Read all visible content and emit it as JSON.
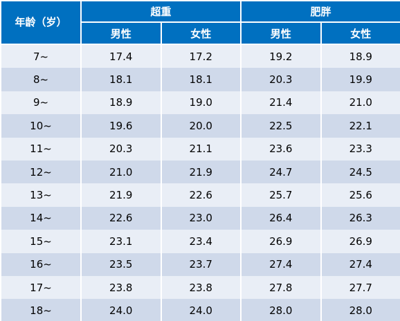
{
  "table": {
    "headers": {
      "age": "年龄（岁）",
      "groups": [
        {
          "label": "超重",
          "sub": [
            "男性",
            "女性"
          ]
        },
        {
          "label": "肥胖",
          "sub": [
            "男性",
            "女性"
          ]
        }
      ]
    },
    "rows": [
      {
        "age": "7~",
        "values": [
          "17.4",
          "17.2",
          "19.2",
          "18.9"
        ]
      },
      {
        "age": "8~",
        "values": [
          "18.1",
          "18.1",
          "20.3",
          "19.9"
        ]
      },
      {
        "age": "9~",
        "values": [
          "18.9",
          "19.0",
          "21.4",
          "21.0"
        ]
      },
      {
        "age": "10~",
        "values": [
          "19.6",
          "20.0",
          "22.5",
          "22.1"
        ]
      },
      {
        "age": "11~",
        "values": [
          "20.3",
          "21.1",
          "23.6",
          "23.3"
        ]
      },
      {
        "age": "12~",
        "values": [
          "21.0",
          "21.9",
          "24.7",
          "24.5"
        ]
      },
      {
        "age": "13~",
        "values": [
          "21.9",
          "22.6",
          "25.7",
          "25.6"
        ]
      },
      {
        "age": "14~",
        "values": [
          "22.6",
          "23.0",
          "26.4",
          "26.3"
        ]
      },
      {
        "age": "15~",
        "values": [
          "23.1",
          "23.4",
          "26.9",
          "26.9"
        ]
      },
      {
        "age": "16~",
        "values": [
          "23.5",
          "23.7",
          "27.4",
          "27.4"
        ]
      },
      {
        "age": "17~",
        "values": [
          "23.8",
          "23.8",
          "27.8",
          "27.7"
        ]
      },
      {
        "age": "18~",
        "values": [
          "24.0",
          "24.0",
          "28.0",
          "28.0"
        ]
      }
    ]
  },
  "colors": {
    "header_bg": "#0070c0",
    "header_text": "#ffffff",
    "row_light": "#e9eef6",
    "row_dark": "#cfd9ea"
  }
}
